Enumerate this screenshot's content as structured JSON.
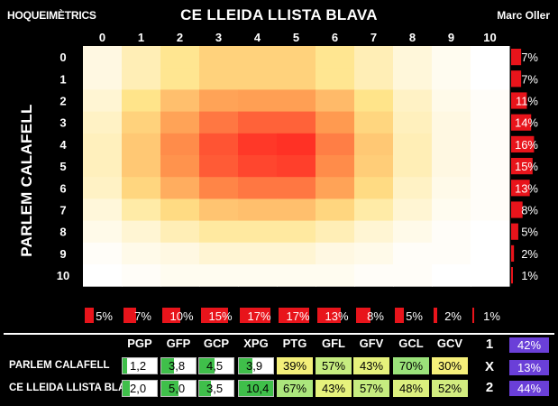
{
  "header": {
    "brand": "HOQUEIMÈTRICS",
    "author": "Marc Oller"
  },
  "chart_data": {
    "type": "heatmap",
    "title": "CE LLEIDA LLISTA BLAVA",
    "xlabel": "",
    "ylabel": "PARLEM CALAFELL",
    "x": [
      "0",
      "1",
      "2",
      "3",
      "4",
      "5",
      "6",
      "7",
      "8",
      "9",
      "10"
    ],
    "y": [
      "0",
      "1",
      "2",
      "3",
      "4",
      "5",
      "6",
      "7",
      "8",
      "9",
      "10"
    ],
    "colormap": [
      "#ffffff",
      "#ffe48a",
      "#ff9a50",
      "#ff2a22"
    ],
    "values": [
      [
        0.4,
        1.0,
        1.5,
        2.0,
        2.0,
        2.0,
        1.5,
        1.0,
        0.5,
        0.2,
        0.0
      ],
      [
        0.4,
        1.0,
        1.5,
        2.0,
        2.0,
        2.0,
        1.5,
        1.0,
        0.5,
        0.2,
        0.0
      ],
      [
        0.6,
        1.6,
        2.4,
        3.0,
        3.1,
        3.1,
        2.5,
        1.6,
        0.8,
        0.3,
        0.1
      ],
      [
        0.8,
        2.0,
        3.0,
        3.7,
        4.0,
        4.0,
        3.2,
        1.9,
        0.9,
        0.4,
        0.1
      ],
      [
        0.9,
        2.2,
        3.4,
        4.2,
        4.6,
        4.7,
        3.6,
        2.2,
        1.0,
        0.4,
        0.1
      ],
      [
        0.9,
        2.2,
        3.3,
        4.1,
        4.4,
        4.5,
        3.4,
        2.1,
        1.0,
        0.4,
        0.1
      ],
      [
        0.8,
        1.9,
        2.8,
        3.5,
        3.7,
        3.7,
        3.0,
        1.8,
        0.8,
        0.3,
        0.1
      ],
      [
        0.5,
        1.2,
        1.8,
        2.3,
        2.4,
        2.4,
        1.9,
        1.2,
        0.6,
        0.2,
        0.1
      ],
      [
        0.3,
        0.6,
        1.0,
        1.3,
        1.3,
        1.3,
        1.0,
        0.6,
        0.3,
        0.1,
        0.0
      ],
      [
        0.1,
        0.3,
        0.4,
        0.6,
        0.6,
        0.6,
        0.4,
        0.3,
        0.1,
        0.1,
        0.0
      ],
      [
        0.0,
        0.1,
        0.2,
        0.2,
        0.2,
        0.2,
        0.2,
        0.1,
        0.1,
        0.0,
        0.0
      ]
    ],
    "vmax": 4.8,
    "row_marginals": [
      "7%",
      "7%",
      "11%",
      "14%",
      "16%",
      "15%",
      "13%",
      "8%",
      "5%",
      "2%",
      "1%"
    ],
    "row_marginal_values": [
      7,
      7,
      11,
      14,
      16,
      15,
      13,
      8,
      5,
      2,
      1
    ],
    "col_marginals": [
      "5%",
      "7%",
      "10%",
      "15%",
      "17%",
      "17%",
      "13%",
      "8%",
      "5%",
      "2%",
      "1%"
    ],
    "col_marginal_values": [
      5,
      7,
      10,
      15,
      17,
      17,
      13,
      8,
      5,
      2,
      1
    ],
    "marginal_color": "#e8141b",
    "marginal_max": 17
  },
  "stats": {
    "headers": [
      "PGP",
      "GFP",
      "GCP",
      "XPG",
      "PTG",
      "GFL",
      "GFV",
      "GCL",
      "GCV"
    ],
    "teams": [
      {
        "name": "PARLEM CALAFELL",
        "values": [
          "1,2",
          "3,8",
          "4,5",
          "3,9",
          "39%",
          "57%",
          "43%",
          "70%",
          "30%"
        ],
        "bar_fractions": [
          0.12,
          0.38,
          0.45,
          0.39
        ],
        "pct_colors": [
          "#f4f07a",
          "#c6ec80",
          "#e6f27c",
          "#9be27a",
          "#f6f07a"
        ]
      },
      {
        "name": "CE LLEIDA LLISTA BLAVA",
        "values": [
          "2,0",
          "5,0",
          "3,5",
          "10,4",
          "67%",
          "43%",
          "57%",
          "48%",
          "52%"
        ],
        "bar_fractions": [
          0.2,
          0.5,
          0.35,
          1.0
        ],
        "pct_colors": [
          "#abe67c",
          "#e6f27c",
          "#c6ec80",
          "#dcef7e",
          "#d2ec7f"
        ]
      }
    ],
    "bar_color": "#3fbf4a",
    "outcomes": [
      {
        "label": "1",
        "value": "42%"
      },
      {
        "label": "X",
        "value": "13%"
      },
      {
        "label": "2",
        "value": "44%"
      }
    ],
    "outcome_color": "#6a3fd8"
  }
}
